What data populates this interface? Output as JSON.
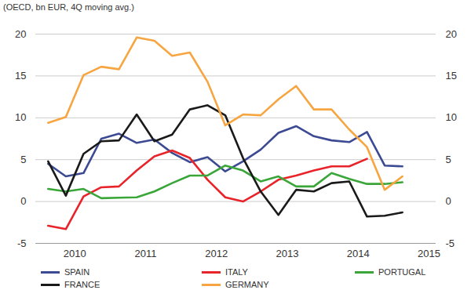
{
  "chart_data": {
    "type": "line",
    "title": "(OECD, bn EUR, 4Q moving avg.)",
    "x": [
      2010.125,
      2010.375,
      2010.625,
      2010.875,
      2011.125,
      2011.375,
      2011.625,
      2011.875,
      2012.125,
      2012.375,
      2012.625,
      2012.875,
      2013.125,
      2013.375,
      2013.625,
      2013.875,
      2014.125,
      2014.375,
      2014.625,
      2014.875,
      2015.125
    ],
    "xlim": [
      2009.95,
      2015.6
    ],
    "xticks": [
      {
        "value": 2010.5,
        "label": "2010"
      },
      {
        "value": 2011.5,
        "label": "2011"
      },
      {
        "value": 2012.5,
        "label": "2012"
      },
      {
        "value": 2013.5,
        "label": "2013"
      },
      {
        "value": 2014.5,
        "label": "2014"
      },
      {
        "value": 2015.5,
        "label": "2015"
      }
    ],
    "ylim": [
      -5,
      20
    ],
    "yticks": [
      -5,
      0,
      5,
      10,
      15,
      20
    ],
    "grid": true,
    "legend": "bottom",
    "series": [
      {
        "name": "SPAIN",
        "color": "#3b4a93",
        "values": [
          4.5,
          3.0,
          3.4,
          7.5,
          8.1,
          7.0,
          7.4,
          5.8,
          4.7,
          5.3,
          3.6,
          4.8,
          6.2,
          8.2,
          9.0,
          7.8,
          7.3,
          7.1,
          8.3,
          4.3,
          4.2
        ]
      },
      {
        "name": "ITALY",
        "color": "#e8242a",
        "values": [
          -2.9,
          -3.3,
          0.6,
          1.7,
          1.8,
          3.7,
          5.4,
          6.1,
          5.2,
          2.6,
          0.5,
          0.0,
          1.2,
          2.6,
          3.1,
          3.7,
          4.2,
          4.2,
          5.1,
          null,
          null
        ]
      },
      {
        "name": "PORTUGAL",
        "color": "#3aa63a",
        "values": [
          1.5,
          1.2,
          1.5,
          0.4,
          0.45,
          0.5,
          1.2,
          2.2,
          3.1,
          3.1,
          4.3,
          3.7,
          2.4,
          3.0,
          1.8,
          1.8,
          3.4,
          2.7,
          2.1,
          2.1,
          2.3
        ]
      },
      {
        "name": "FRANCE",
        "color": "#1a1a1a",
        "values": [
          4.8,
          0.7,
          5.7,
          7.2,
          7.3,
          10.4,
          7.2,
          8.0,
          11.0,
          11.5,
          10.3,
          5.2,
          1.2,
          -1.6,
          1.4,
          1.2,
          2.2,
          2.4,
          -1.8,
          -1.7,
          -1.3
        ]
      },
      {
        "name": "GERMANY",
        "color": "#f7a540",
        "values": [
          9.4,
          10.1,
          15.1,
          16.1,
          15.8,
          19.6,
          19.2,
          17.4,
          17.8,
          14.3,
          9.1,
          10.4,
          10.3,
          12.2,
          13.8,
          11.0,
          11.0,
          8.6,
          6.5,
          1.4,
          3.0
        ]
      }
    ]
  }
}
